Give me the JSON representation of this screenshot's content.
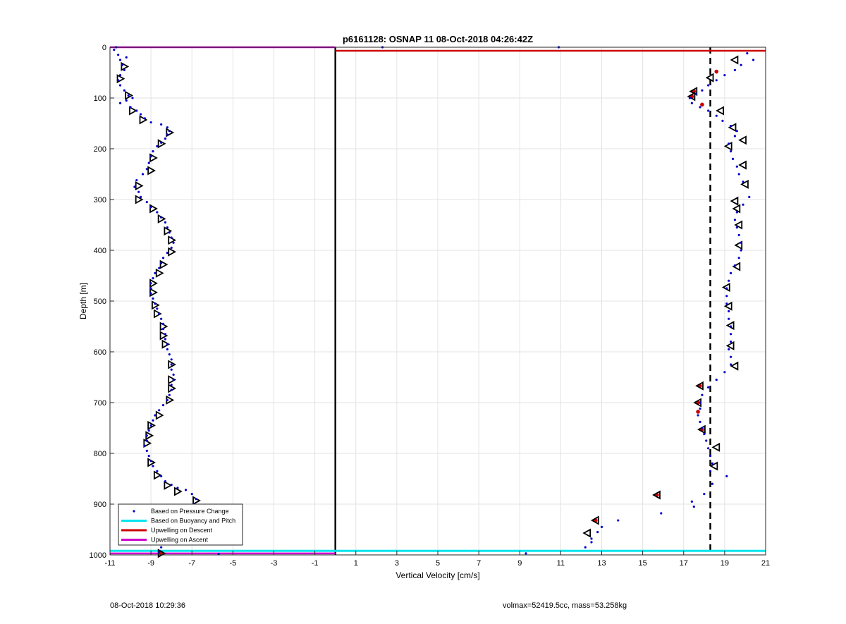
{
  "chart_data": {
    "type": "scatter",
    "title": "p6161128: OSNAP 11 08-Oct-2018 04:26:42Z",
    "xlabel": "Vertical Velocity [cm/s]",
    "ylabel": "Depth [m]",
    "xlim": [
      -11,
      21
    ],
    "ylim": [
      0,
      1000
    ],
    "y_reversed": true,
    "grid": true,
    "xticks": [
      -11,
      -9,
      -7,
      -5,
      -3,
      -1,
      1,
      3,
      5,
      7,
      9,
      11,
      13,
      15,
      17,
      19,
      21
    ],
    "yticks": [
      0,
      100,
      200,
      300,
      400,
      500,
      600,
      700,
      800,
      900,
      1000
    ],
    "legend_position": "bottom-left",
    "legend": [
      {
        "label": "Based on Pressure Change",
        "color": "#0000cc"
      },
      {
        "label": "Based on Buoyancy and Pitch",
        "color": "#00e5ee"
      },
      {
        "label": "Upwelling on Descent",
        "color": "#cc0000"
      },
      {
        "label": "Upwelling on Ascent",
        "color": "#cc00cc"
      }
    ],
    "reference_lines": {
      "zero_velocity_x": 0,
      "dashed_mean_descent_x": 18.3,
      "red_depth": 7,
      "magenta_depth": 0,
      "cyan_depth": 992,
      "magenta_bottom_depth": 997
    },
    "series": [
      {
        "name": "Based on Pressure Change",
        "color": "#0000cc",
        "points": [
          [
            -10.8,
            5
          ],
          [
            -10.6,
            15
          ],
          [
            -10.5,
            25
          ],
          [
            -10.4,
            35
          ],
          [
            -10.3,
            45
          ],
          [
            -10.5,
            55
          ],
          [
            -10.6,
            65
          ],
          [
            -10.5,
            75
          ],
          [
            -10.3,
            85
          ],
          [
            -10.1,
            95
          ],
          [
            -9.9,
            100
          ],
          [
            -10.2,
            105
          ],
          [
            -10.5,
            110
          ],
          [
            -10.0,
            118
          ],
          [
            -9.7,
            125
          ],
          [
            -9.5,
            132
          ],
          [
            -9.3,
            140
          ],
          [
            -9.0,
            148
          ],
          [
            -8.5,
            152
          ],
          [
            -8.2,
            158
          ],
          [
            -8.1,
            165
          ],
          [
            -8.2,
            172
          ],
          [
            -8.3,
            180
          ],
          [
            -8.5,
            188
          ],
          [
            -8.7,
            195
          ],
          [
            -8.9,
            205
          ],
          [
            -9.0,
            215
          ],
          [
            -9.1,
            228
          ],
          [
            -9.2,
            240
          ],
          [
            -9.4,
            250
          ],
          [
            -9.7,
            262
          ],
          [
            -9.8,
            275
          ],
          [
            -9.6,
            285
          ],
          [
            -9.5,
            295
          ],
          [
            -9.2,
            305
          ],
          [
            -9.0,
            315
          ],
          [
            -8.7,
            325
          ],
          [
            -8.5,
            335
          ],
          [
            -8.3,
            345
          ],
          [
            -8.2,
            355
          ],
          [
            -8.1,
            365
          ],
          [
            -8.0,
            375
          ],
          [
            -7.9,
            385
          ],
          [
            -8.0,
            395
          ],
          [
            -8.2,
            405
          ],
          [
            -8.4,
            415
          ],
          [
            -8.5,
            425
          ],
          [
            -8.6,
            435
          ],
          [
            -8.8,
            445
          ],
          [
            -8.9,
            455
          ],
          [
            -9.0,
            465
          ],
          [
            -9.0,
            475
          ],
          [
            -9.0,
            485
          ],
          [
            -8.9,
            495
          ],
          [
            -8.8,
            505
          ],
          [
            -8.7,
            515
          ],
          [
            -8.6,
            525
          ],
          [
            -8.5,
            535
          ],
          [
            -8.4,
            545
          ],
          [
            -8.4,
            555
          ],
          [
            -8.3,
            565
          ],
          [
            -8.3,
            575
          ],
          [
            -8.2,
            585
          ],
          [
            -8.2,
            595
          ],
          [
            -8.1,
            605
          ],
          [
            -8.0,
            615
          ],
          [
            -8.0,
            625
          ],
          [
            -8.0,
            635
          ],
          [
            -7.9,
            645
          ],
          [
            -7.9,
            655
          ],
          [
            -8.0,
            665
          ],
          [
            -8.0,
            675
          ],
          [
            -8.1,
            685
          ],
          [
            -8.2,
            695
          ],
          [
            -8.4,
            705
          ],
          [
            -8.6,
            715
          ],
          [
            -8.8,
            725
          ],
          [
            -8.9,
            735
          ],
          [
            -9.0,
            745
          ],
          [
            -9.1,
            755
          ],
          [
            -9.2,
            765
          ],
          [
            -9.2,
            775
          ],
          [
            -9.3,
            785
          ],
          [
            -9.2,
            795
          ],
          [
            -9.1,
            805
          ],
          [
            -9.0,
            815
          ],
          [
            -8.9,
            825
          ],
          [
            -8.7,
            835
          ],
          [
            -8.5,
            845
          ],
          [
            -8.3,
            855
          ],
          [
            -8.0,
            862
          ],
          [
            -7.7,
            868
          ],
          [
            -7.3,
            872
          ],
          [
            -7.0,
            880
          ],
          [
            -6.8,
            890
          ],
          [
            -6.9,
            900
          ],
          [
            -7.1,
            910
          ],
          [
            -7.3,
            920
          ],
          [
            -7.5,
            930
          ],
          [
            -7.7,
            940
          ],
          [
            -7.9,
            948
          ],
          [
            -8.1,
            955
          ],
          [
            -8.3,
            965
          ],
          [
            -8.4,
            975
          ],
          [
            -8.5,
            985
          ],
          [
            -8.6,
            995
          ],
          [
            -5.7,
            998
          ],
          [
            -10.7,
            0
          ],
          [
            -10.2,
            20
          ],
          [
            2.3,
            0
          ],
          [
            10.9,
            0
          ],
          [
            20.1,
            12
          ],
          [
            20.4,
            25
          ],
          [
            19.8,
            35
          ],
          [
            19.5,
            45
          ],
          [
            19.0,
            55
          ],
          [
            18.6,
            65
          ],
          [
            18.2,
            75
          ],
          [
            17.9,
            85
          ],
          [
            17.6,
            92
          ],
          [
            17.3,
            100
          ],
          [
            17.4,
            110
          ],
          [
            17.8,
            118
          ],
          [
            18.2,
            125
          ],
          [
            18.6,
            135
          ],
          [
            18.9,
            145
          ],
          [
            19.3,
            155
          ],
          [
            19.6,
            165
          ],
          [
            19.5,
            175
          ],
          [
            19.2,
            190
          ],
          [
            19.3,
            205
          ],
          [
            19.4,
            220
          ],
          [
            19.6,
            235
          ],
          [
            19.7,
            250
          ],
          [
            19.9,
            265
          ],
          [
            20.2,
            295
          ],
          [
            19.9,
            310
          ],
          [
            19.6,
            325
          ],
          [
            19.5,
            340
          ],
          [
            19.6,
            355
          ],
          [
            19.7,
            370
          ],
          [
            19.8,
            385
          ],
          [
            19.8,
            400
          ],
          [
            19.7,
            415
          ],
          [
            19.5,
            430
          ],
          [
            19.3,
            445
          ],
          [
            19.2,
            460
          ],
          [
            19.1,
            475
          ],
          [
            19.1,
            490
          ],
          [
            19.1,
            505
          ],
          [
            19.2,
            520
          ],
          [
            19.2,
            535
          ],
          [
            19.3,
            550
          ],
          [
            19.3,
            565
          ],
          [
            19.3,
            580
          ],
          [
            19.2,
            595
          ],
          [
            19.3,
            610
          ],
          [
            19.3,
            625
          ],
          [
            19.0,
            640
          ],
          [
            18.6,
            655
          ],
          [
            18.2,
            670
          ],
          [
            17.9,
            685
          ],
          [
            17.8,
            700
          ],
          [
            17.8,
            712
          ],
          [
            17.7,
            725
          ],
          [
            17.8,
            738
          ],
          [
            17.9,
            750
          ],
          [
            18.0,
            762
          ],
          [
            18.1,
            775
          ],
          [
            18.2,
            790
          ],
          [
            18.3,
            805
          ],
          [
            18.4,
            820
          ],
          [
            18.3,
            835
          ],
          [
            19.1,
            845
          ],
          [
            18.4,
            860
          ],
          [
            18.0,
            880
          ],
          [
            17.4,
            895
          ],
          [
            17.5,
            905
          ],
          [
            15.9,
            918
          ],
          [
            13.8,
            932
          ],
          [
            13.0,
            945
          ],
          [
            12.8,
            955
          ],
          [
            12.5,
            968
          ],
          [
            12.5,
            975
          ],
          [
            12.2,
            985
          ],
          [
            9.3,
            997
          ]
        ]
      },
      {
        "name": "Upwelling on Descent",
        "color": "#cc0000",
        "points": [
          [
            18.6,
            48
          ],
          [
            17.5,
            87
          ],
          [
            17.4,
            97
          ],
          [
            17.9,
            113
          ],
          [
            17.8,
            667
          ],
          [
            17.7,
            700
          ],
          [
            17.7,
            718
          ],
          [
            17.9,
            753
          ],
          [
            15.7,
            882
          ],
          [
            12.7,
            932
          ],
          [
            -8.5,
            997
          ]
        ]
      },
      {
        "name": "Triangles (ascent)",
        "color": "#000000",
        "points": [
          [
            -10.3,
            38
          ],
          [
            -10.5,
            62
          ],
          [
            -10.1,
            95
          ],
          [
            -9.9,
            125
          ],
          [
            -9.4,
            143
          ],
          [
            -8.1,
            168
          ],
          [
            -8.5,
            190
          ],
          [
            -8.9,
            218
          ],
          [
            -9.0,
            243
          ],
          [
            -9.6,
            273
          ],
          [
            -9.6,
            300
          ],
          [
            -8.9,
            318
          ],
          [
            -8.5,
            338
          ],
          [
            -8.2,
            362
          ],
          [
            -8.0,
            380
          ],
          [
            -8.0,
            403
          ],
          [
            -8.4,
            428
          ],
          [
            -8.6,
            445
          ],
          [
            -8.9,
            465
          ],
          [
            -8.9,
            483
          ],
          [
            -8.8,
            508
          ],
          [
            -8.7,
            525
          ],
          [
            -8.4,
            550
          ],
          [
            -8.4,
            568
          ],
          [
            -8.3,
            585
          ],
          [
            -8.0,
            625
          ],
          [
            -8.0,
            655
          ],
          [
            -8.0,
            672
          ],
          [
            -8.1,
            695
          ],
          [
            -8.6,
            725
          ],
          [
            -9.0,
            745
          ],
          [
            -9.1,
            765
          ],
          [
            -9.2,
            780
          ],
          [
            -9.0,
            818
          ],
          [
            -8.7,
            843
          ],
          [
            -8.2,
            863
          ],
          [
            -7.7,
            875
          ],
          [
            -6.8,
            893
          ],
          [
            -7.2,
            917
          ],
          [
            -7.3,
            940
          ],
          [
            -7.7,
            965
          ],
          [
            -8.5,
            997
          ]
        ]
      },
      {
        "name": "Triangles (descent)",
        "color": "#000000",
        "points": [
          [
            19.5,
            25
          ],
          [
            18.3,
            60
          ],
          [
            17.5,
            87
          ],
          [
            17.4,
            97
          ],
          [
            18.8,
            125
          ],
          [
            19.4,
            158
          ],
          [
            19.9,
            183
          ],
          [
            19.2,
            195
          ],
          [
            19.9,
            232
          ],
          [
            20.0,
            270
          ],
          [
            19.5,
            303
          ],
          [
            19.6,
            318
          ],
          [
            19.7,
            350
          ],
          [
            19.7,
            390
          ],
          [
            19.6,
            432
          ],
          [
            19.1,
            473
          ],
          [
            19.2,
            510
          ],
          [
            19.3,
            548
          ],
          [
            19.3,
            588
          ],
          [
            19.5,
            628
          ],
          [
            17.8,
            667
          ],
          [
            17.7,
            700
          ],
          [
            17.9,
            753
          ],
          [
            18.6,
            788
          ],
          [
            18.5,
            825
          ],
          [
            15.7,
            882
          ],
          [
            12.7,
            932
          ],
          [
            12.3,
            957
          ]
        ]
      }
    ]
  },
  "footer": {
    "timestamp": "08-Oct-2018 10:29:36",
    "stats": "volmax=52419.5cc, mass=53.258kg"
  }
}
